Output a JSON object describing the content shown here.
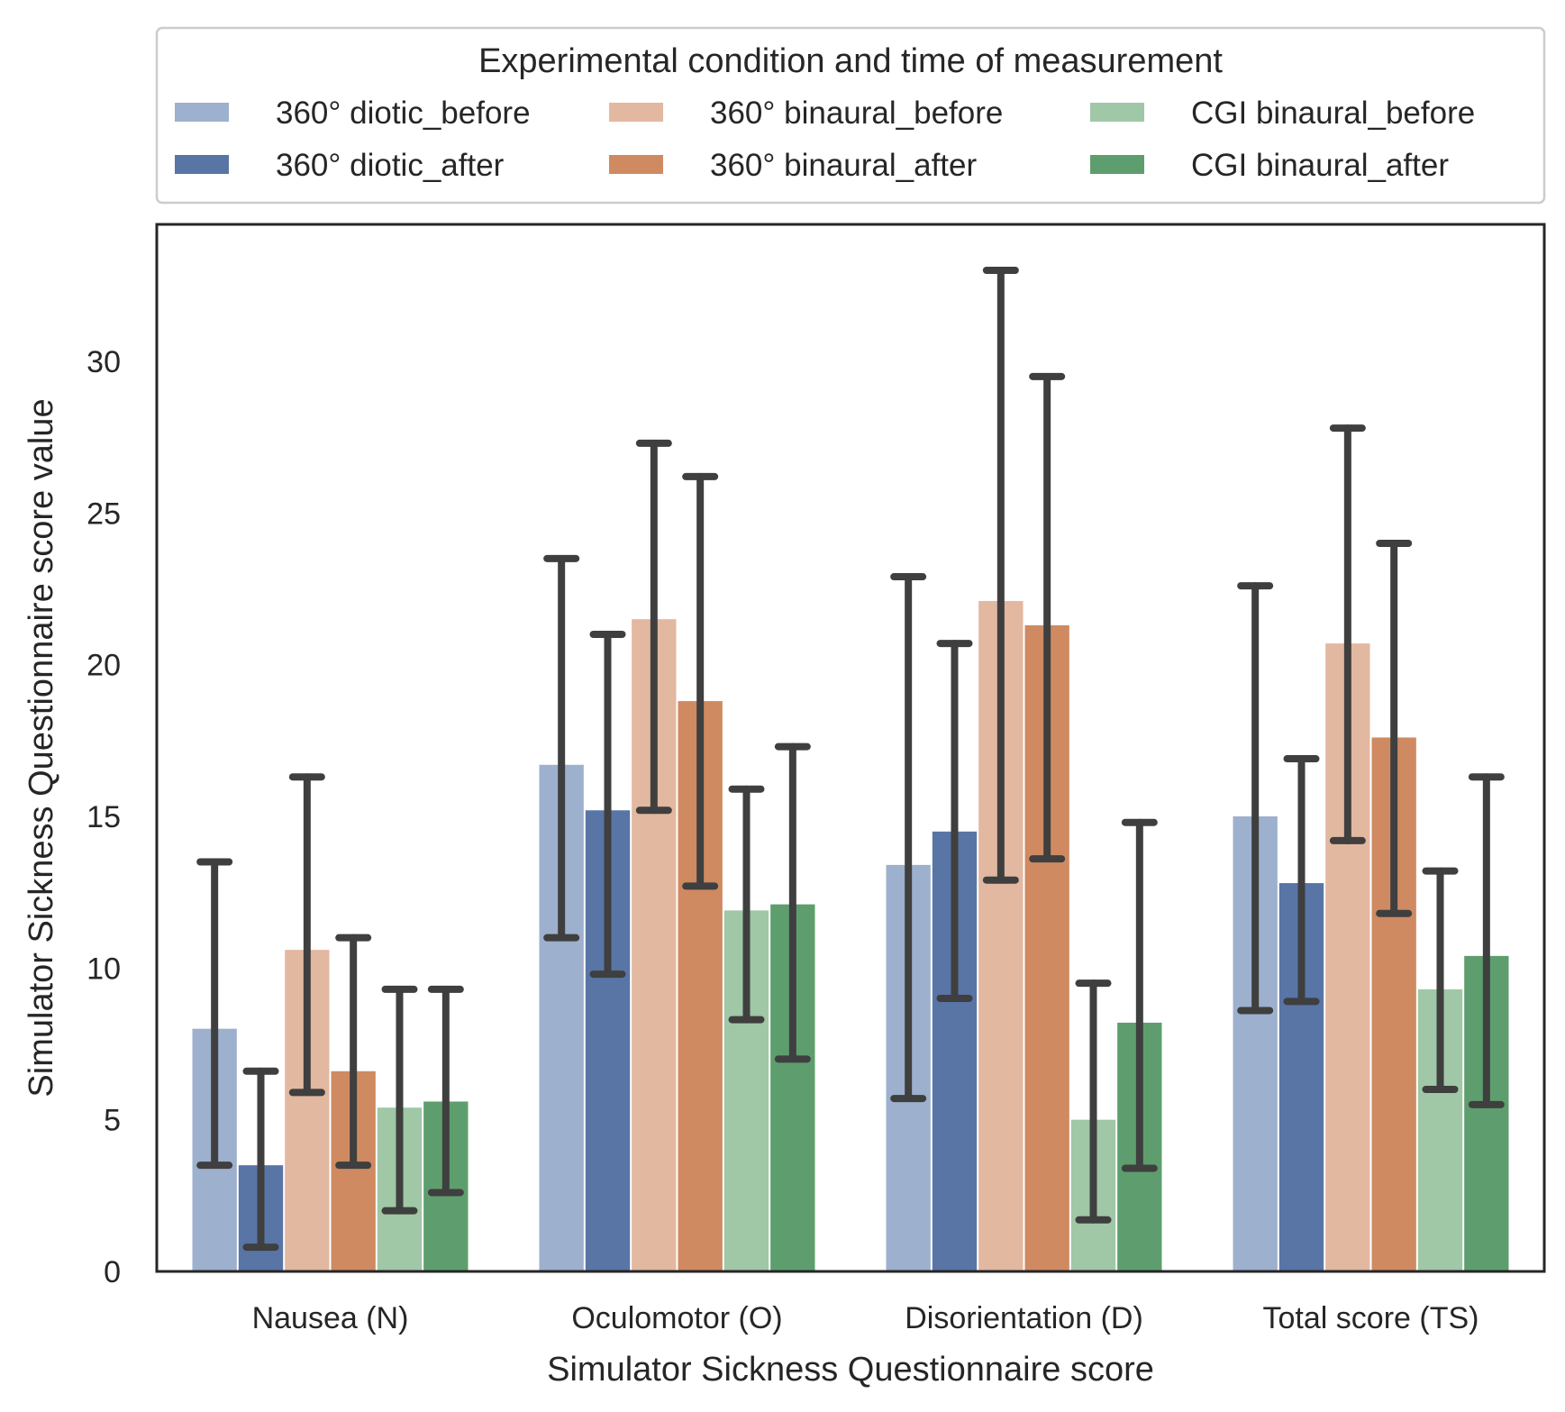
{
  "chart_data": {
    "type": "bar",
    "categories": [
      "Nausea (N)",
      "Oculomotor (O)",
      "Disorientation (D)",
      "Total score (TS)"
    ],
    "series": [
      {
        "name": "360° diotic_before",
        "color": "#9db0cd",
        "values": [
          8.0,
          16.7,
          13.4,
          15.0
        ],
        "ci_low": [
          3.5,
          11.0,
          5.7,
          8.6
        ],
        "ci_high": [
          13.5,
          23.5,
          22.9,
          22.6
        ]
      },
      {
        "name": "360° diotic_after",
        "color": "#5875a6",
        "values": [
          3.5,
          15.2,
          14.5,
          12.8
        ],
        "ci_low": [
          0.8,
          9.8,
          9.0,
          8.9
        ],
        "ci_high": [
          6.6,
          21.0,
          20.7,
          16.9
        ]
      },
      {
        "name": "360° binaural_before",
        "color": "#e3b8a0",
        "values": [
          10.6,
          21.5,
          22.1,
          20.7
        ],
        "ci_low": [
          5.9,
          15.2,
          12.9,
          14.2
        ],
        "ci_high": [
          16.3,
          27.3,
          33.0,
          27.8
        ]
      },
      {
        "name": "360° binaural_after",
        "color": "#cf8a62",
        "values": [
          6.6,
          18.8,
          21.3,
          17.6
        ],
        "ci_low": [
          3.5,
          12.7,
          13.6,
          11.8
        ],
        "ci_high": [
          11.0,
          26.2,
          29.5,
          24.0
        ]
      },
      {
        "name": "CGI binaural_before",
        "color": "#a0c7a6",
        "values": [
          5.4,
          11.9,
          5.0,
          9.3
        ],
        "ci_low": [
          2.0,
          8.3,
          1.7,
          6.0
        ],
        "ci_high": [
          9.3,
          15.9,
          9.5,
          13.2
        ]
      },
      {
        "name": "CGI binaural_after",
        "color": "#5e9e6e",
        "values": [
          5.6,
          12.1,
          8.2,
          10.4
        ],
        "ci_low": [
          2.6,
          7.0,
          3.4,
          5.5
        ],
        "ci_high": [
          9.3,
          17.3,
          14.8,
          16.3
        ]
      }
    ],
    "xlabel": "Simulator Sickness Questionnaire score",
    "ylabel": "Simulator Sickness Questionnaire score value",
    "yticks": [
      0,
      5,
      10,
      15,
      20,
      25,
      30
    ],
    "ylim": [
      0,
      34.6
    ],
    "legend_title": "Experimental condition and time of measurement",
    "legend_position": "top",
    "grid": false
  }
}
